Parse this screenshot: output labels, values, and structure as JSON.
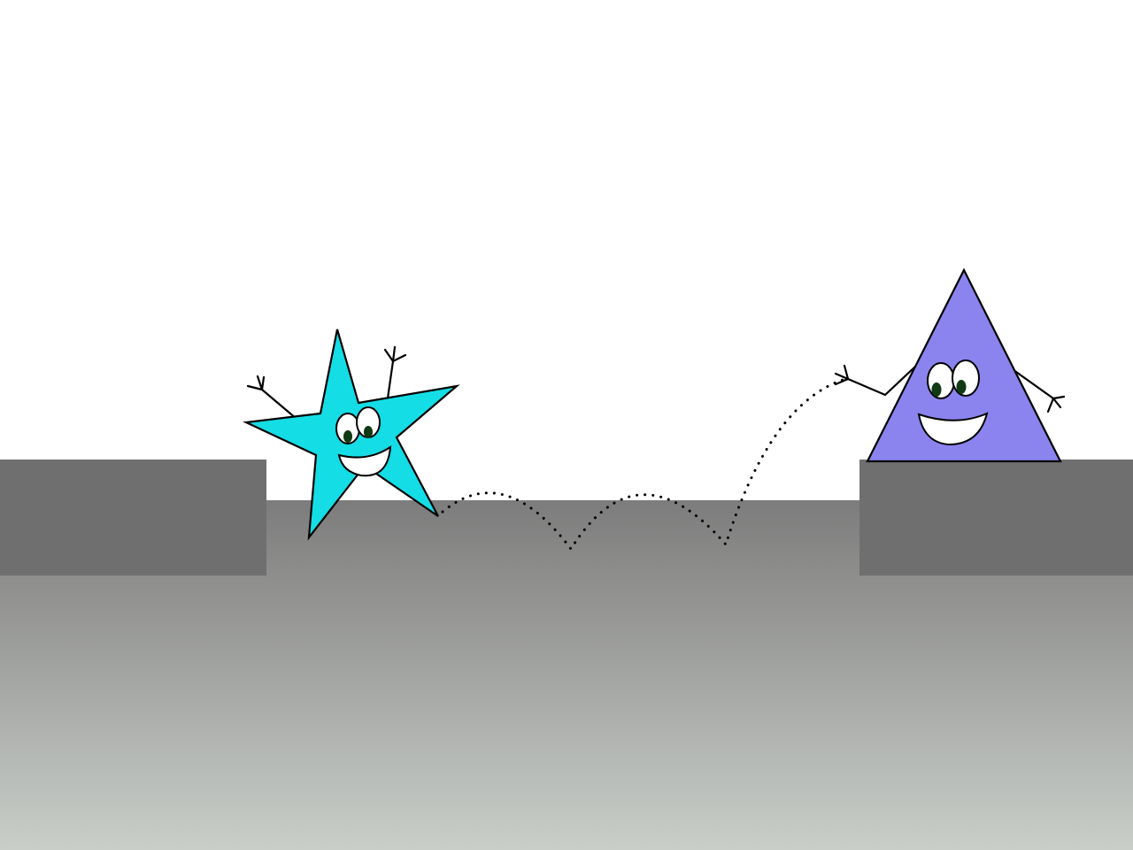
{
  "scene": {
    "background_color": "#ffffff",
    "ground_gradient": {
      "top_color": "#7d7c7c",
      "bottom_color": "#c9cec9"
    },
    "ledge_color": "#6f6f6f",
    "characters": [
      {
        "name": "star",
        "shape": "five-pointed-star",
        "fill_color": "#14dde6",
        "expression": "smiling",
        "pose": "arms-raised"
      },
      {
        "name": "triangle",
        "shape": "triangle",
        "fill_color": "#8b84ef",
        "expression": "smiling",
        "pose": "arms-outstretched"
      }
    ],
    "bounce_path": {
      "style": "dotted",
      "bounces": 3,
      "color": "#000000"
    },
    "eye_pupil_color": "#0f3a14"
  }
}
